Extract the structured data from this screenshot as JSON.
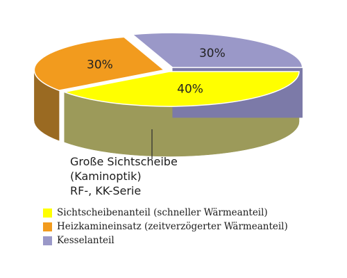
{
  "chart_data": {
    "type": "pie",
    "style": "3d-exploded",
    "slices": [
      {
        "label": "Sichtscheibenanteil (schneller Wärmeanteil)",
        "value": 40,
        "display": "40%",
        "color": "#ffff00",
        "side_color": "#9c9a5a"
      },
      {
        "label": "Heizkamineinsatz (zeitverzögerter Wärmeanteil)",
        "value": 30,
        "display": "30%",
        "color": "#f29b1e",
        "side_color": "#9a6a22"
      },
      {
        "label": "Kesselanteil",
        "value": 30,
        "display": "30%",
        "color": "#9a98c8",
        "side_color": "#6f6d96"
      }
    ],
    "annotation": [
      "Große Sichtscheibe",
      "(Kaminoptik)",
      "RF-, KK-Serie"
    ],
    "legend_position": "bottom-left"
  }
}
